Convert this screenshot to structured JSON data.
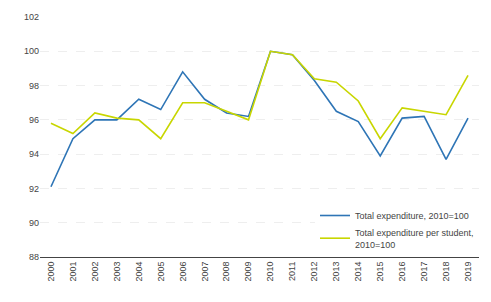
{
  "chart_data": {
    "type": "line",
    "x": [
      2000,
      2001,
      2002,
      2003,
      2004,
      2005,
      2006,
      2007,
      2008,
      2009,
      2010,
      2011,
      2012,
      2013,
      2014,
      2015,
      2016,
      2017,
      2018,
      2019
    ],
    "series": [
      {
        "name": "Total expenditure, 2010=100",
        "color": "#2E75B6",
        "values": [
          92.1,
          94.9,
          96.0,
          96.0,
          97.2,
          96.6,
          98.8,
          97.2,
          96.4,
          96.2,
          100.0,
          99.8,
          98.3,
          96.5,
          95.9,
          93.9,
          96.1,
          96.2,
          93.7,
          96.1
        ]
      },
      {
        "name": "Total expenditure per student,\n2010=100",
        "color": "#C8D600",
        "values": [
          95.8,
          95.2,
          96.4,
          96.1,
          96.0,
          94.9,
          97.0,
          97.0,
          96.5,
          96.0,
          100.0,
          99.8,
          98.4,
          98.2,
          97.1,
          94.9,
          96.7,
          96.5,
          96.3,
          98.6
        ]
      }
    ],
    "xlim": [
      1999.5,
      2019.5
    ],
    "xticks": [
      2000,
      2001,
      2002,
      2003,
      2004,
      2005,
      2006,
      2007,
      2008,
      2009,
      2010,
      2011,
      2012,
      2013,
      2014,
      2015,
      2016,
      2017,
      2018,
      2019
    ],
    "ylim": [
      88,
      102
    ],
    "yticks": [
      88,
      90,
      92,
      94,
      96,
      98,
      100,
      102
    ],
    "grid": true,
    "legend": "lower right"
  }
}
